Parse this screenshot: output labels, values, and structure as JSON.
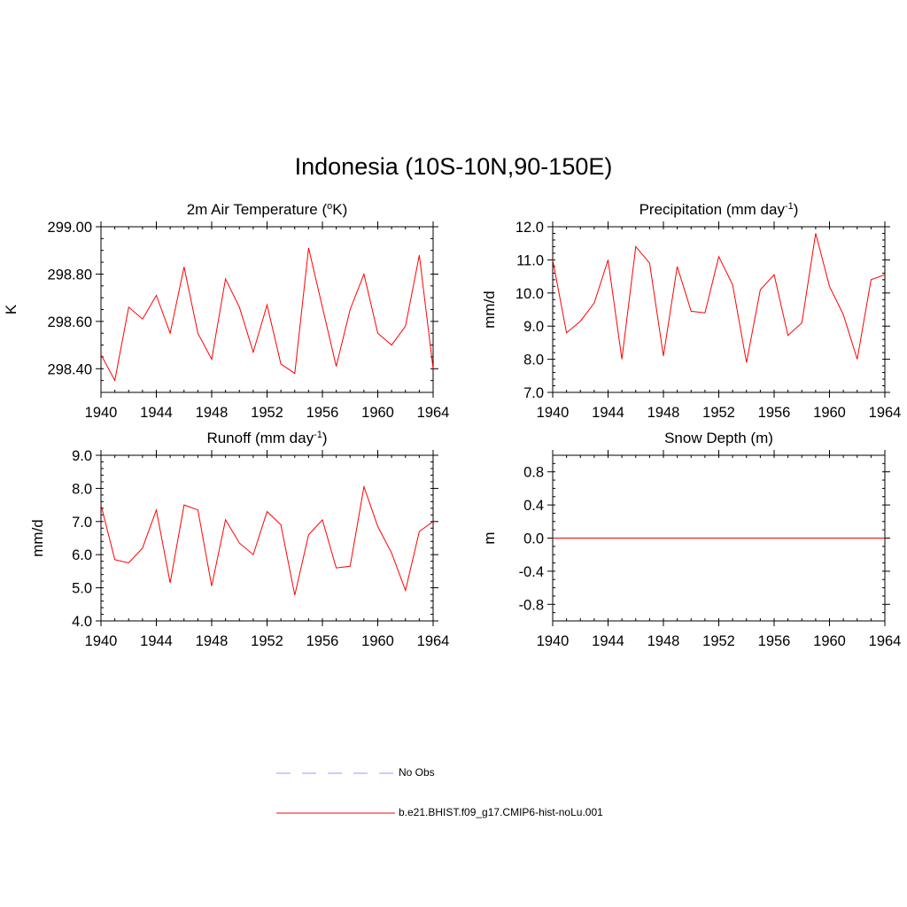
{
  "page": {
    "title": "Indonesia (10S-10N,90-150E)"
  },
  "legend": [
    {
      "label": "No Obs",
      "color": "#9999ff",
      "dash": true
    },
    {
      "label": "b.e21.BHIST.f09_g17.CMIP6-hist-noLu.001",
      "color": "#ff0000",
      "dash": false
    }
  ],
  "chart_data": [
    {
      "type": "line",
      "title": "2m Air Temperature (",
      "title_sup_pre": "o",
      "title_after_sup": "K)",
      "title_sup": "",
      "title_end": "",
      "ylabel": "K",
      "xlim": [
        1940,
        1964
      ],
      "ylim": [
        298.3,
        299.0
      ],
      "yticks": [
        298.4,
        298.6,
        298.8,
        299.0
      ],
      "ytick_labels": [
        "298.40",
        "298.60",
        "298.80",
        "299.00"
      ],
      "ytick_minor_step": 0.05,
      "xticks": [
        1940,
        1944,
        1948,
        1952,
        1956,
        1960,
        1964
      ],
      "xtick_labels": [
        "1940",
        "1944",
        "1948",
        "1952",
        "1956",
        "1960",
        "1964"
      ],
      "color": "#ff0000",
      "x": [
        1940,
        1941,
        1942,
        1943,
        1944,
        1945,
        1946,
        1947,
        1948,
        1949,
        1950,
        1951,
        1952,
        1953,
        1954,
        1955,
        1956,
        1957,
        1958,
        1959,
        1960,
        1961,
        1962,
        1963,
        1964
      ],
      "y": [
        298.46,
        298.35,
        298.66,
        298.61,
        298.71,
        298.55,
        298.83,
        298.55,
        298.44,
        298.78,
        298.66,
        298.47,
        298.67,
        298.42,
        298.38,
        298.91,
        298.66,
        298.41,
        298.65,
        298.8,
        298.55,
        298.5,
        298.58,
        298.88,
        298.4
      ]
    },
    {
      "type": "line",
      "title": "Precipitation (mm day",
      "title_sup": "-1",
      "title_end": ")",
      "ylabel": "mm/d",
      "xlim": [
        1940,
        1964
      ],
      "ylim": [
        7.0,
        12.0
      ],
      "yticks": [
        7.0,
        8.0,
        9.0,
        10.0,
        11.0,
        12.0
      ],
      "ytick_labels": [
        "7.0",
        "8.0",
        "9.0",
        "10.0",
        "11.0",
        "12.0"
      ],
      "ytick_minor_step": 0.2,
      "xticks": [
        1940,
        1944,
        1948,
        1952,
        1956,
        1960,
        1964
      ],
      "xtick_labels": [
        "1940",
        "1944",
        "1948",
        "1952",
        "1956",
        "1960",
        "1964"
      ],
      "color": "#ff0000",
      "x": [
        1940,
        1941,
        1942,
        1943,
        1944,
        1945,
        1946,
        1947,
        1948,
        1949,
        1950,
        1951,
        1952,
        1953,
        1954,
        1955,
        1956,
        1957,
        1958,
        1959,
        1960,
        1961,
        1962,
        1963,
        1964
      ],
      "y": [
        11.0,
        8.8,
        9.15,
        9.7,
        11.0,
        8.0,
        11.4,
        10.9,
        8.1,
        10.8,
        9.45,
        9.4,
        11.1,
        10.25,
        7.9,
        10.1,
        10.55,
        8.72,
        9.1,
        11.8,
        10.2,
        9.35,
        8.0,
        10.4,
        10.55
      ]
    },
    {
      "type": "line",
      "title": "Runoff (mm day",
      "title_sup": "-1",
      "title_end": ")",
      "ylabel": "mm/d",
      "xlim": [
        1940,
        1964
      ],
      "ylim": [
        4.0,
        9.0
      ],
      "yticks": [
        4.0,
        5.0,
        6.0,
        7.0,
        8.0,
        9.0
      ],
      "ytick_labels": [
        "4.0",
        "5.0",
        "6.0",
        "7.0",
        "8.0",
        "9.0"
      ],
      "ytick_minor_step": 0.2,
      "xticks": [
        1940,
        1944,
        1948,
        1952,
        1956,
        1960,
        1964
      ],
      "xtick_labels": [
        "1940",
        "1944",
        "1948",
        "1952",
        "1956",
        "1960",
        "1964"
      ],
      "color": "#ff0000",
      "x": [
        1940,
        1941,
        1942,
        1943,
        1944,
        1945,
        1946,
        1947,
        1948,
        1949,
        1950,
        1951,
        1952,
        1953,
        1954,
        1955,
        1956,
        1957,
        1958,
        1959,
        1960,
        1961,
        1962,
        1963,
        1964
      ],
      "y": [
        7.5,
        5.85,
        5.75,
        6.2,
        7.35,
        5.15,
        7.5,
        7.35,
        5.05,
        7.05,
        6.35,
        6.0,
        7.3,
        6.9,
        4.78,
        6.6,
        7.05,
        5.6,
        5.65,
        8.05,
        6.85,
        6.05,
        4.92,
        6.7,
        7.0
      ]
    },
    {
      "type": "line",
      "title": "Snow Depth (m)",
      "title_sup": "",
      "title_end": "",
      "ylabel": "m",
      "xlim": [
        1940,
        1964
      ],
      "ylim": [
        -1.0,
        1.0
      ],
      "yticks": [
        -0.8,
        -0.4,
        0.0,
        0.4,
        0.8
      ],
      "ytick_labels": [
        "-0.8",
        "-0.4",
        "0.0",
        "0.4",
        "0.8"
      ],
      "ytick_minor_step": 0.1,
      "xticks": [
        1940,
        1944,
        1948,
        1952,
        1956,
        1960,
        1964
      ],
      "xtick_labels": [
        "1940",
        "1944",
        "1948",
        "1952",
        "1956",
        "1960",
        "1964"
      ],
      "color": "#ff0000",
      "x": [
        1940,
        1941,
        1942,
        1943,
        1944,
        1945,
        1946,
        1947,
        1948,
        1949,
        1950,
        1951,
        1952,
        1953,
        1954,
        1955,
        1956,
        1957,
        1958,
        1959,
        1960,
        1961,
        1962,
        1963,
        1964
      ],
      "y": [
        0,
        0,
        0,
        0,
        0,
        0,
        0,
        0,
        0,
        0,
        0,
        0,
        0,
        0,
        0,
        0,
        0,
        0,
        0,
        0,
        0,
        0,
        0,
        0,
        0
      ]
    }
  ]
}
